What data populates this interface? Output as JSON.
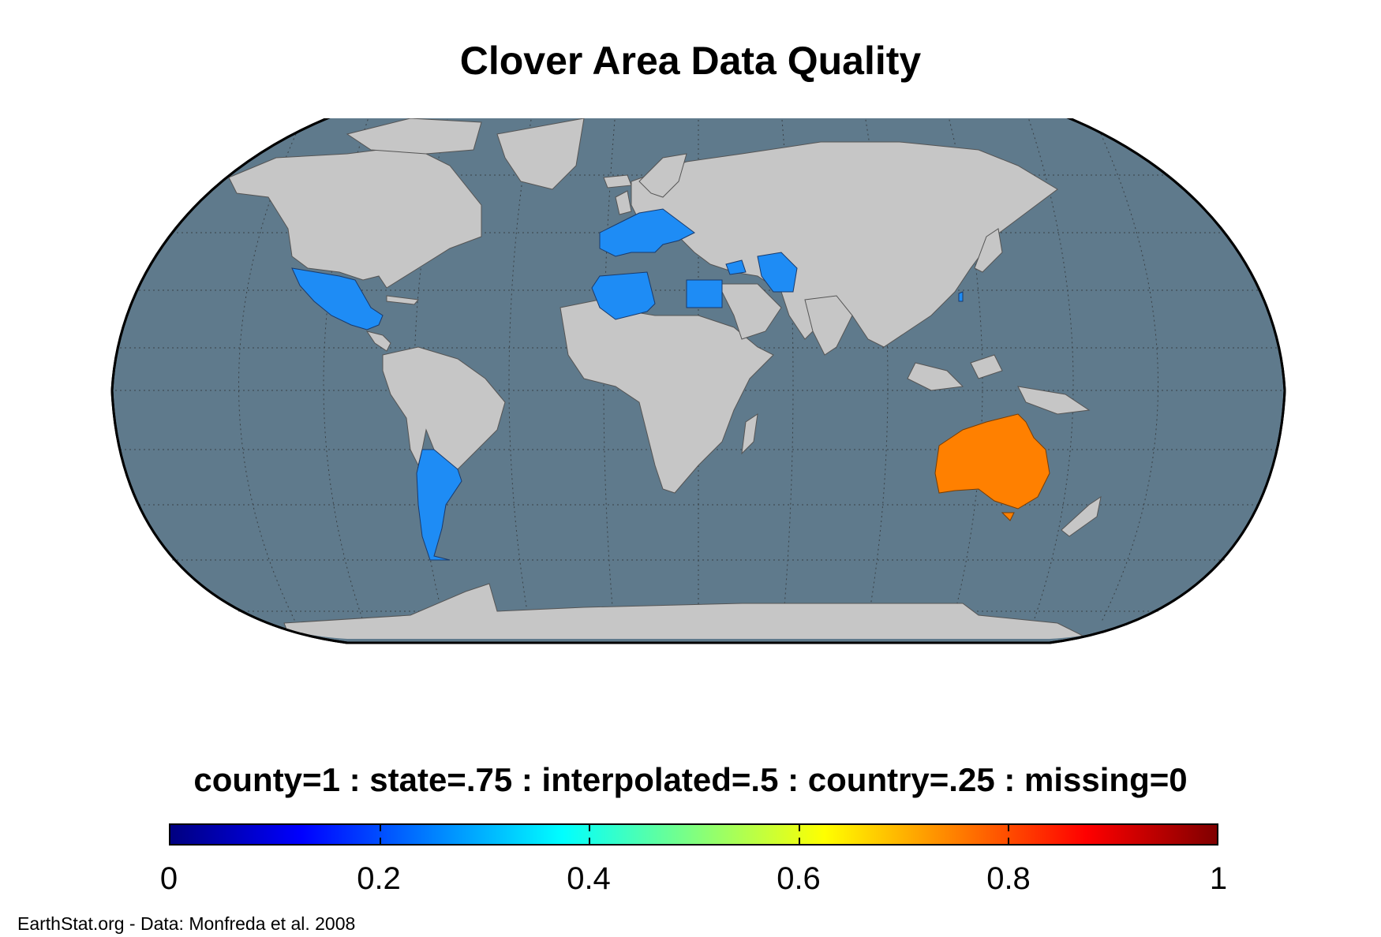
{
  "title": "Clover Area Data Quality",
  "legend_label": "county=1 : state=.75 : interpolated=.5 : country=.25 : missing=0",
  "colorbar": {
    "ticks": [
      "0",
      "0.2",
      "0.4",
      "0.6",
      "0.8",
      "1"
    ],
    "range": [
      0,
      1
    ],
    "colormap": "jet"
  },
  "credit": "EarthStat.org - Data: Monfreda et al. 2008",
  "colors": {
    "ocean": "#5f7a8c",
    "land_missing": "#c6c6c6",
    "country_level": "#1e8cf5",
    "state_level": "#ff8000"
  },
  "map": {
    "projection": "Robinson",
    "regions": [
      {
        "name": "Mexico",
        "quality": 0.25
      },
      {
        "name": "Argentina",
        "quality": 0.25
      },
      {
        "name": "Western Europe",
        "quality": 0.25
      },
      {
        "name": "Algeria",
        "quality": 0.25
      },
      {
        "name": "Tunisia",
        "quality": 0.25
      },
      {
        "name": "Egypt",
        "quality": 0.25
      },
      {
        "name": "Syria",
        "quality": 0.25
      },
      {
        "name": "Iran",
        "quality": 0.25
      },
      {
        "name": "Taiwan",
        "quality": 0.25
      },
      {
        "name": "Australia",
        "quality": 0.75
      }
    ]
  }
}
